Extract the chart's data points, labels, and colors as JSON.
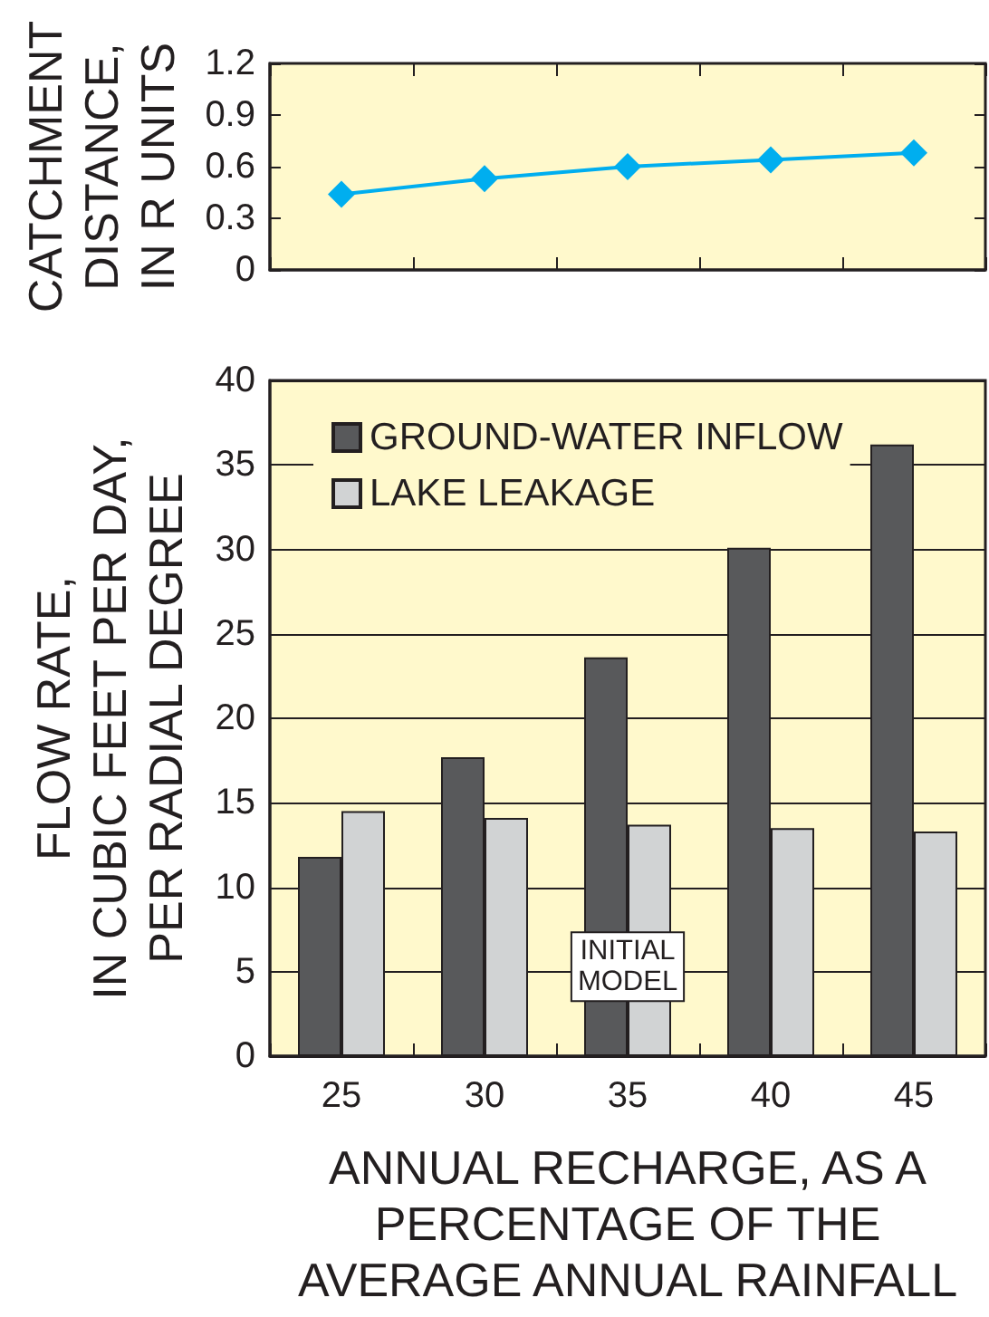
{
  "chart_data": [
    {
      "type": "line",
      "ylabel": "CATCHMENT\nDISTANCE,\nIN R UNITS",
      "categories": [
        "25",
        "30",
        "35",
        "40",
        "45"
      ],
      "series": [
        {
          "color": "#00aeef",
          "values": [
            0.44,
            0.53,
            0.6,
            0.64,
            0.68
          ]
        }
      ],
      "ylim": [
        0,
        1.2
      ],
      "yticks": [
        0,
        0.3,
        0.6,
        0.9,
        1.2
      ],
      "marker": "diamond",
      "tick_labels": "y"
    },
    {
      "type": "bar",
      "xlabel": "ANNUAL RECHARGE, AS A\nPERCENTAGE OF THE\nAVERAGE ANNUAL RAINFALL",
      "ylabel": "FLOW RATE,\nIN CUBIC FEET PER DAY,\nPER RADIAL DEGREE",
      "categories": [
        "25",
        "30",
        "35",
        "40",
        "45"
      ],
      "series": [
        {
          "name": "GROUND-WATER INFLOW",
          "color": "#58595b",
          "values": [
            11.8,
            17.7,
            23.6,
            30.1,
            36.2
          ]
        },
        {
          "name": "LAKE LEAKAGE",
          "color": "#d1d3d4",
          "values": [
            14.5,
            14.1,
            13.7,
            13.5,
            13.3
          ]
        }
      ],
      "ylim": [
        0,
        40
      ],
      "yticks": [
        0,
        5,
        10,
        15,
        20,
        25,
        30,
        35,
        40
      ],
      "grid": "y",
      "legend": "top left",
      "annotations": [
        {
          "text": "INITIAL\nMODEL",
          "x": "35",
          "y": 5.3
        }
      ]
    }
  ]
}
